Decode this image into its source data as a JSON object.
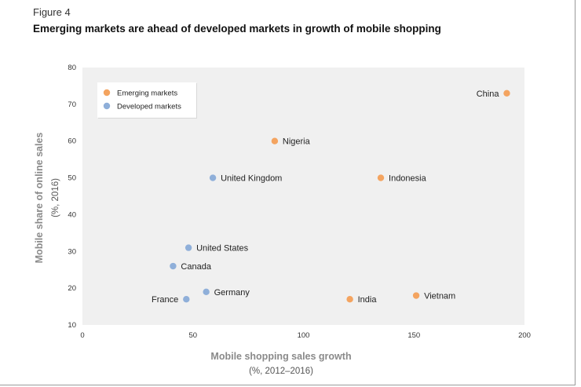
{
  "figure_label": "Figure 4",
  "figure_title": "Emerging markets are ahead of developed markets in growth of mobile shopping",
  "chart_data": {
    "type": "scatter",
    "xlabel": "Mobile shopping sales growth",
    "xlabel_sub": "(%, 2012–2016)",
    "ylabel": "Mobile share of online sales",
    "ylabel_sub": "(%, 2016)",
    "xlim": [
      0,
      200
    ],
    "ylim": [
      10,
      80
    ],
    "x_ticks": [
      0,
      50,
      100,
      150,
      200
    ],
    "y_ticks": [
      10,
      20,
      30,
      40,
      50,
      60,
      70,
      80
    ],
    "grid": false,
    "legend_position": "top-left",
    "series": [
      {
        "name": "Emerging markets",
        "color": "#f4a460",
        "points": [
          {
            "label": "China",
            "x": 192,
            "y": 73,
            "label_side": "left"
          },
          {
            "label": "Nigeria",
            "x": 87,
            "y": 60,
            "label_side": "right"
          },
          {
            "label": "Indonesia",
            "x": 135,
            "y": 50,
            "label_side": "right"
          },
          {
            "label": "India",
            "x": 121,
            "y": 17,
            "label_side": "right"
          },
          {
            "label": "Vietnam",
            "x": 151,
            "y": 18,
            "label_side": "right"
          }
        ]
      },
      {
        "name": "Developed markets",
        "color": "#8fafd9",
        "points": [
          {
            "label": "United Kingdom",
            "x": 59,
            "y": 50,
            "label_side": "right"
          },
          {
            "label": "United States",
            "x": 48,
            "y": 31,
            "label_side": "right"
          },
          {
            "label": "Canada",
            "x": 41,
            "y": 26,
            "label_side": "right"
          },
          {
            "label": "Germany",
            "x": 56,
            "y": 19,
            "label_side": "right"
          },
          {
            "label": "France",
            "x": 47,
            "y": 17,
            "label_side": "left"
          }
        ]
      }
    ],
    "plot_background": "#f0f0f0"
  }
}
